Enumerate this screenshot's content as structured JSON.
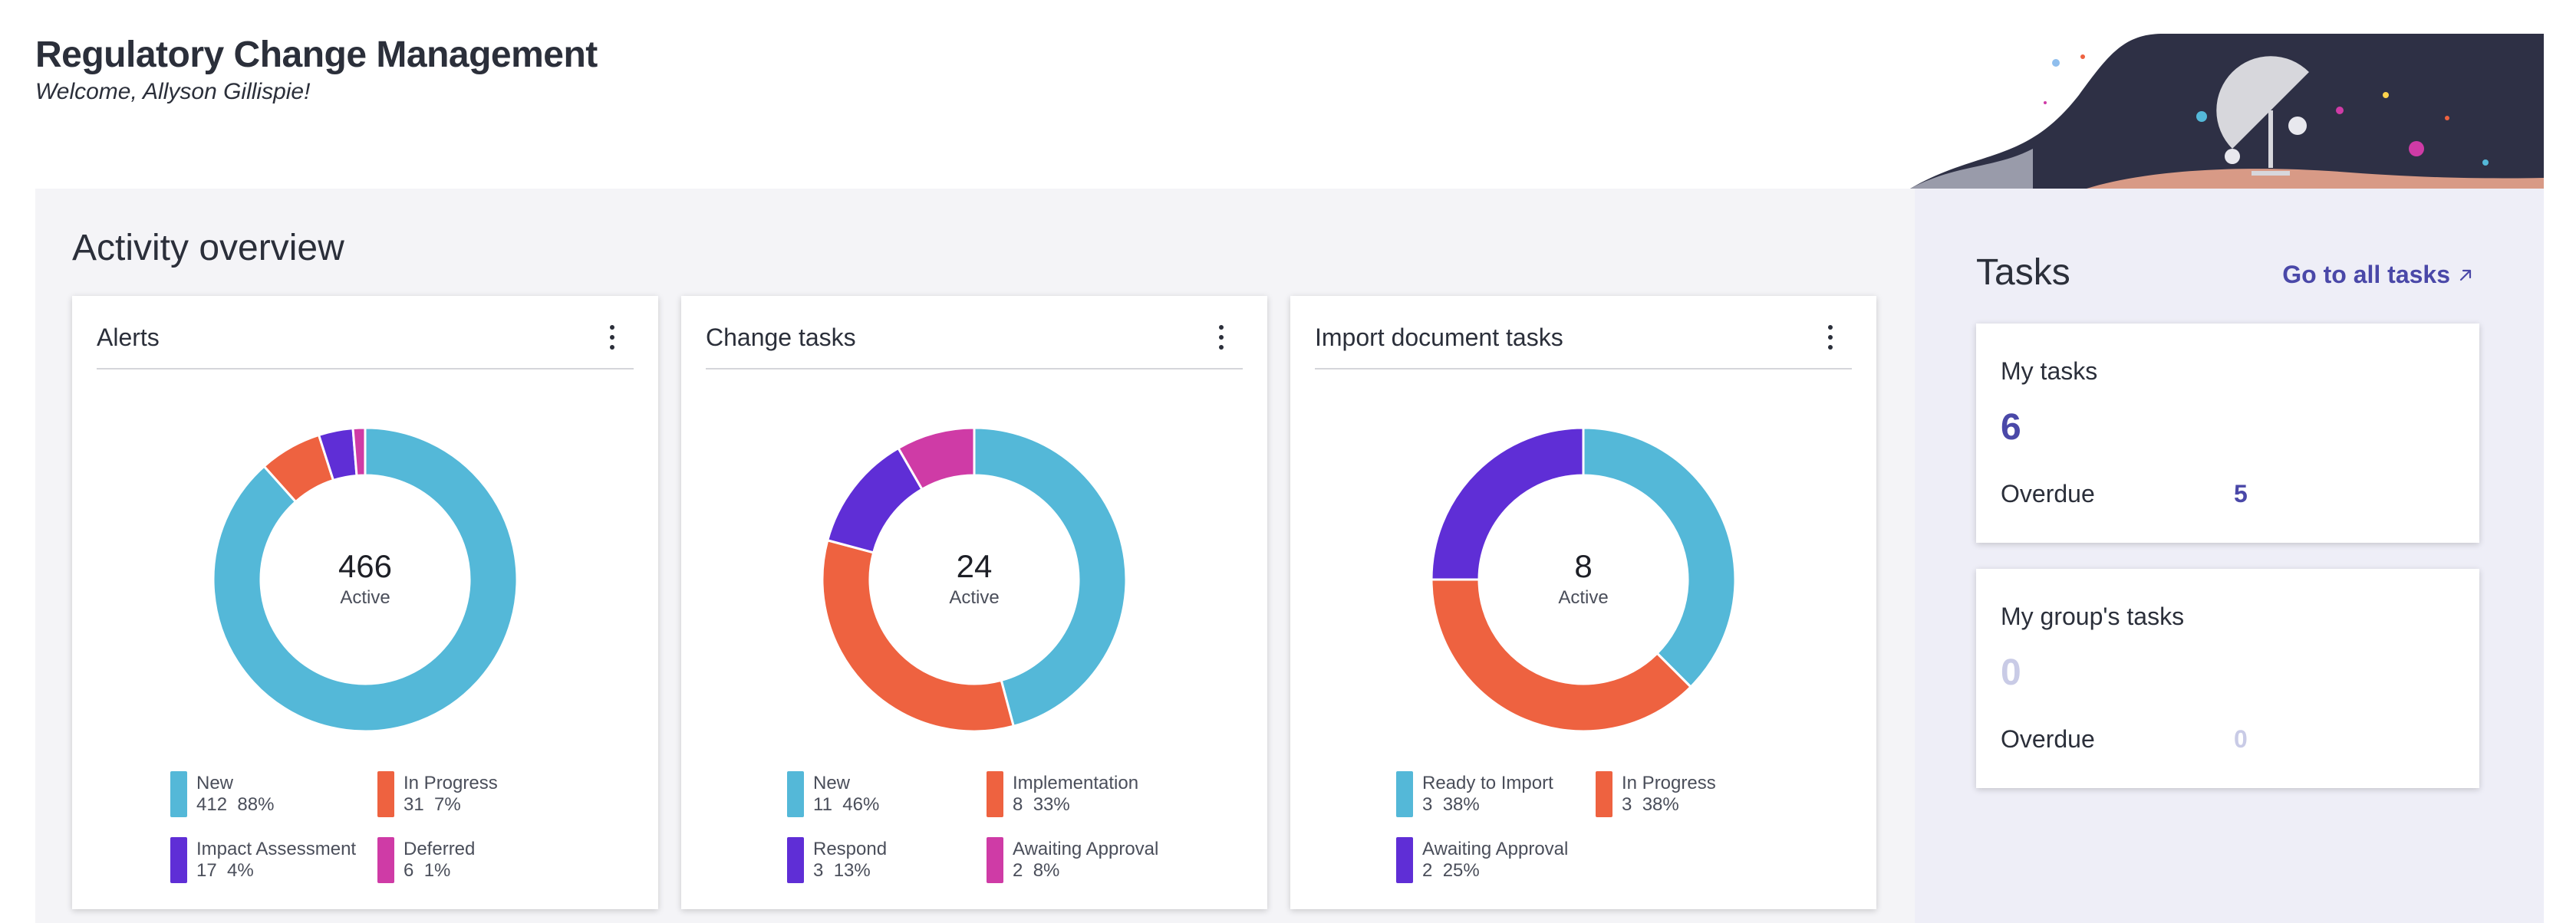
{
  "header": {
    "title": "Regulatory Change Management",
    "welcome": "Welcome, Allyson Gillispie!"
  },
  "activity": {
    "title": "Activity overview",
    "cards": [
      {
        "title": "Alerts",
        "total": "466",
        "total_label": "Active",
        "segments": [
          {
            "name": "New",
            "count": "412",
            "percent": "88%",
            "value": 412,
            "color": "#54b8d8"
          },
          {
            "name": "In Progress",
            "count": "31",
            "percent": "7%",
            "value": 31,
            "color": "#ee6240"
          },
          {
            "name": "Impact Assessment",
            "count": "17",
            "percent": "4%",
            "value": 17,
            "color": "#5f2ed6"
          },
          {
            "name": "Deferred",
            "count": "6",
            "percent": "1%",
            "value": 6,
            "color": "#cf3ba6"
          }
        ]
      },
      {
        "title": "Change tasks",
        "total": "24",
        "total_label": "Active",
        "segments": [
          {
            "name": "New",
            "count": "11",
            "percent": "46%",
            "value": 11,
            "color": "#54b8d8"
          },
          {
            "name": "Implementation",
            "count": "8",
            "percent": "33%",
            "value": 8,
            "color": "#ee6240"
          },
          {
            "name": "Respond",
            "count": "3",
            "percent": "13%",
            "value": 3,
            "color": "#5f2ed6"
          },
          {
            "name": "Awaiting Approval",
            "count": "2",
            "percent": "8%",
            "value": 2,
            "color": "#cf3ba6"
          }
        ]
      },
      {
        "title": "Import document tasks",
        "total": "8",
        "total_label": "Active",
        "segments": [
          {
            "name": "Ready to Import",
            "count": "3",
            "percent": "38%",
            "value": 3,
            "color": "#54b8d8"
          },
          {
            "name": "In Progress",
            "count": "3",
            "percent": "38%",
            "value": 3,
            "color": "#ee6240"
          },
          {
            "name": "Awaiting Approval",
            "count": "2",
            "percent": "25%",
            "value": 2,
            "color": "#5f2ed6"
          }
        ]
      }
    ]
  },
  "tasks": {
    "title": "Tasks",
    "link_label": "Go to all tasks",
    "my_tasks": {
      "title": "My tasks",
      "count": "6",
      "overdue_label": "Overdue",
      "overdue": "5",
      "color": "#4a48a8"
    },
    "group_tasks": {
      "title": "My group's tasks",
      "count": "0",
      "overdue_label": "Overdue",
      "overdue": "0",
      "color": "#c9cbe6"
    }
  },
  "icons": {
    "kebab": "kebab-menu-icon",
    "link": "arrow-up-right-icon"
  }
}
